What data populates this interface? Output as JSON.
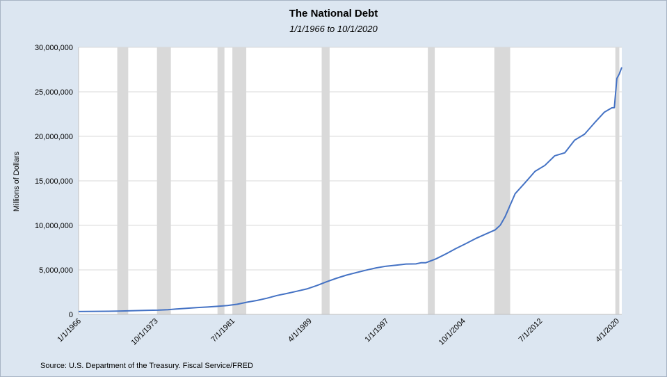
{
  "chart_data": {
    "type": "line",
    "title": "The National Debt",
    "subtitle": "1/1/1966 to 10/1/2020",
    "xlabel": "",
    "ylabel": "Millions of Dollars",
    "source": "Source: U.S. Department of the Treasury. Fiscal Service/FRED",
    "ylim": [
      0,
      30000000
    ],
    "xlim": [
      1966.0,
      2020.75
    ],
    "y_ticks": [
      0,
      5000000,
      10000000,
      15000000,
      20000000,
      25000000,
      30000000
    ],
    "y_tick_labels": [
      "0",
      "5,000,000",
      "10,000,000",
      "15,000,000",
      "20,000,000",
      "25,000,000",
      "30,000,000"
    ],
    "x_ticks": [
      1966.0,
      1973.75,
      1981.5,
      1989.25,
      1997.0,
      2004.75,
      2012.5,
      2020.25
    ],
    "x_tick_labels": [
      "1/1/1966",
      "10/1/1973",
      "7/1/1981",
      "4/1/1989",
      "1/1/1997",
      "10/1/2004",
      "7/1/2012",
      "4/1/2020"
    ],
    "grid": true,
    "line_color": "#4472c4",
    "recession_color": "#d9d9d9",
    "recessions": [
      [
        1969.9,
        1971.0
      ],
      [
        1973.9,
        1975.3
      ],
      [
        1980.0,
        1980.7
      ],
      [
        1981.5,
        1982.9
      ],
      [
        1990.5,
        1991.3
      ],
      [
        2001.2,
        2001.9
      ],
      [
        2007.9,
        2009.5
      ],
      [
        2020.1,
        2020.5
      ]
    ],
    "series": [
      {
        "values": [
          [
            1966.0,
            320000
          ],
          [
            1967.0,
            326000
          ],
          [
            1968.0,
            345000
          ],
          [
            1969.0,
            354000
          ],
          [
            1970.0,
            370000
          ],
          [
            1971.0,
            398000
          ],
          [
            1972.0,
            427000
          ],
          [
            1973.0,
            458000
          ],
          [
            1974.0,
            475000
          ],
          [
            1975.0,
            533000
          ],
          [
            1976.0,
            620000
          ],
          [
            1977.0,
            699000
          ],
          [
            1978.0,
            772000
          ],
          [
            1979.0,
            827000
          ],
          [
            1980.0,
            908000
          ],
          [
            1981.0,
            998000
          ],
          [
            1982.0,
            1142000
          ],
          [
            1983.0,
            1377000
          ],
          [
            1984.0,
            1572000
          ],
          [
            1985.0,
            1823000
          ],
          [
            1986.0,
            2125000
          ],
          [
            1987.0,
            2350000
          ],
          [
            1988.0,
            2602000
          ],
          [
            1989.0,
            2857000
          ],
          [
            1990.0,
            3233000
          ],
          [
            1991.0,
            3665000
          ],
          [
            1992.0,
            4065000
          ],
          [
            1993.0,
            4411000
          ],
          [
            1994.0,
            4693000
          ],
          [
            1995.0,
            4974000
          ],
          [
            1996.0,
            5225000
          ],
          [
            1997.0,
            5413000
          ],
          [
            1998.0,
            5526000
          ],
          [
            1999.0,
            5656000
          ],
          [
            2000.0,
            5674000
          ],
          [
            2000.5,
            5800000
          ],
          [
            2001.0,
            5807000
          ],
          [
            2002.0,
            6228000
          ],
          [
            2003.0,
            6783000
          ],
          [
            2004.0,
            7379000
          ],
          [
            2005.0,
            7933000
          ],
          [
            2006.0,
            8507000
          ],
          [
            2007.0,
            9008000
          ],
          [
            2008.0,
            9500000
          ],
          [
            2008.5,
            10024000
          ],
          [
            2009.0,
            11000000
          ],
          [
            2010.0,
            13562000
          ],
          [
            2011.0,
            14790000
          ],
          [
            2012.0,
            16066000
          ],
          [
            2013.0,
            16738000
          ],
          [
            2014.0,
            17824000
          ],
          [
            2015.0,
            18151000
          ],
          [
            2016.0,
            19573000
          ],
          [
            2017.0,
            20245000
          ],
          [
            2018.0,
            21516000
          ],
          [
            2019.0,
            22719000
          ],
          [
            2019.75,
            23201000
          ],
          [
            2020.0,
            23224000
          ],
          [
            2020.25,
            26500000
          ],
          [
            2020.5,
            27000000
          ],
          [
            2020.75,
            27748000
          ]
        ]
      }
    ]
  }
}
